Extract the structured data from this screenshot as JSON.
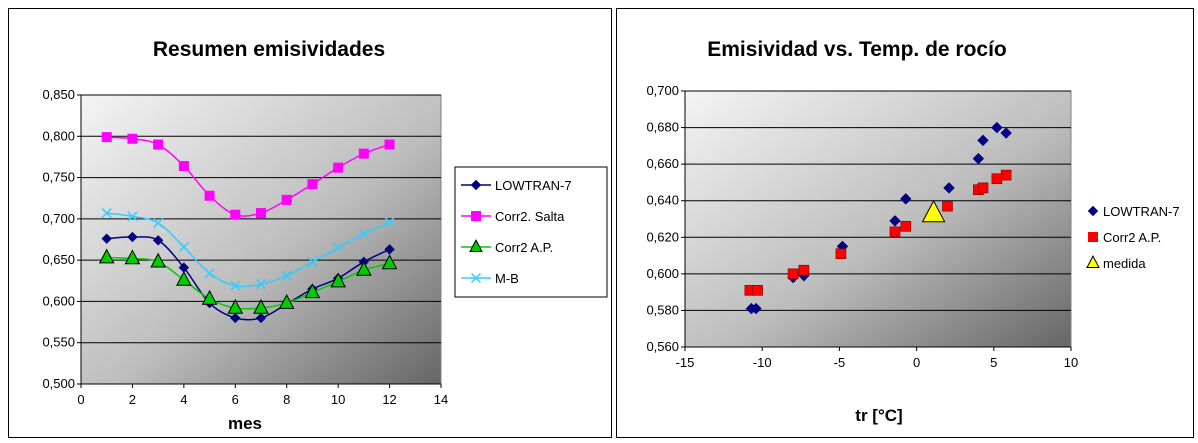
{
  "chart_data": [
    {
      "type": "line",
      "title": "Resumen emisividades",
      "xlabel": "mes",
      "ylabel": "",
      "xlim": [
        0,
        14
      ],
      "ylim": [
        0.5,
        0.85
      ],
      "x_ticks": [
        "0",
        "2",
        "4",
        "6",
        "8",
        "10",
        "12",
        "14"
      ],
      "y_ticks": [
        "0,500",
        "0,550",
        "0,600",
        "0,650",
        "0,700",
        "0,750",
        "0,800",
        "0,850"
      ],
      "grid": "horizontal",
      "legend": "right",
      "x": [
        1,
        2,
        3,
        4,
        5,
        6,
        7,
        8,
        9,
        10,
        11,
        12
      ],
      "series": [
        {
          "name": "LOWTRAN-7",
          "color": "#000080",
          "marker": "diamond",
          "values": [
            0.676,
            0.678,
            0.674,
            0.641,
            0.598,
            0.58,
            0.58,
            0.597,
            0.615,
            0.628,
            0.648,
            0.663
          ]
        },
        {
          "name": "Corr2. Salta",
          "color": "#ff00ff",
          "marker": "square",
          "values": [
            0.799,
            0.797,
            0.79,
            0.764,
            0.728,
            0.705,
            0.707,
            0.723,
            0.742,
            0.762,
            0.779,
            0.79
          ]
        },
        {
          "name": "Corr2 A.P.",
          "color": "#00cc00",
          "marker": "triangle",
          "values": [
            0.653,
            0.652,
            0.648,
            0.626,
            0.603,
            0.592,
            0.592,
            0.598,
            0.611,
            0.624,
            0.638,
            0.646
          ]
        },
        {
          "name": "M-B",
          "color": "#33ccff",
          "marker": "x",
          "values": [
            0.707,
            0.703,
            0.695,
            0.666,
            0.634,
            0.619,
            0.621,
            0.631,
            0.648,
            0.665,
            0.682,
            0.696
          ]
        }
      ]
    },
    {
      "type": "scatter",
      "title": "Emisividad vs. Temp. de rocío",
      "xlabel": "tr [°C]",
      "ylabel": "",
      "xlim": [
        -15,
        10
      ],
      "ylim": [
        0.56,
        0.7
      ],
      "x_ticks": [
        "-15",
        "-10",
        "-5",
        "0",
        "5",
        "10"
      ],
      "y_ticks": [
        "0,560",
        "0,580",
        "0,600",
        "0,620",
        "0,640",
        "0,660",
        "0,680",
        "0,700"
      ],
      "grid": "horizontal",
      "legend": "right",
      "series": [
        {
          "name": "LOWTRAN-7",
          "color": "#000080",
          "marker": "diamond",
          "points": [
            [
              -10.7,
              0.581
            ],
            [
              -10.4,
              0.581
            ],
            [
              -8.0,
              0.598
            ],
            [
              -7.3,
              0.599
            ],
            [
              -4.8,
              0.615
            ],
            [
              -1.4,
              0.629
            ],
            [
              -0.7,
              0.641
            ],
            [
              2.1,
              0.647
            ],
            [
              4.0,
              0.663
            ],
            [
              4.3,
              0.673
            ],
            [
              5.2,
              0.68
            ],
            [
              5.8,
              0.677
            ]
          ]
        },
        {
          "name": "Corr2 A.P.",
          "color": "#ff0000",
          "marker": "square",
          "points": [
            [
              -10.8,
              0.591
            ],
            [
              -10.3,
              0.591
            ],
            [
              -8.0,
              0.6
            ],
            [
              -7.3,
              0.602
            ],
            [
              -4.9,
              0.611
            ],
            [
              -1.4,
              0.623
            ],
            [
              -0.7,
              0.626
            ],
            [
              2.0,
              0.637
            ],
            [
              4.0,
              0.646
            ],
            [
              4.3,
              0.647
            ],
            [
              5.2,
              0.652
            ],
            [
              5.8,
              0.654
            ]
          ]
        },
        {
          "name": "medida",
          "color": "#ffff00",
          "marker": "triangle",
          "points": [
            [
              1.1,
              0.633
            ]
          ]
        }
      ]
    }
  ]
}
